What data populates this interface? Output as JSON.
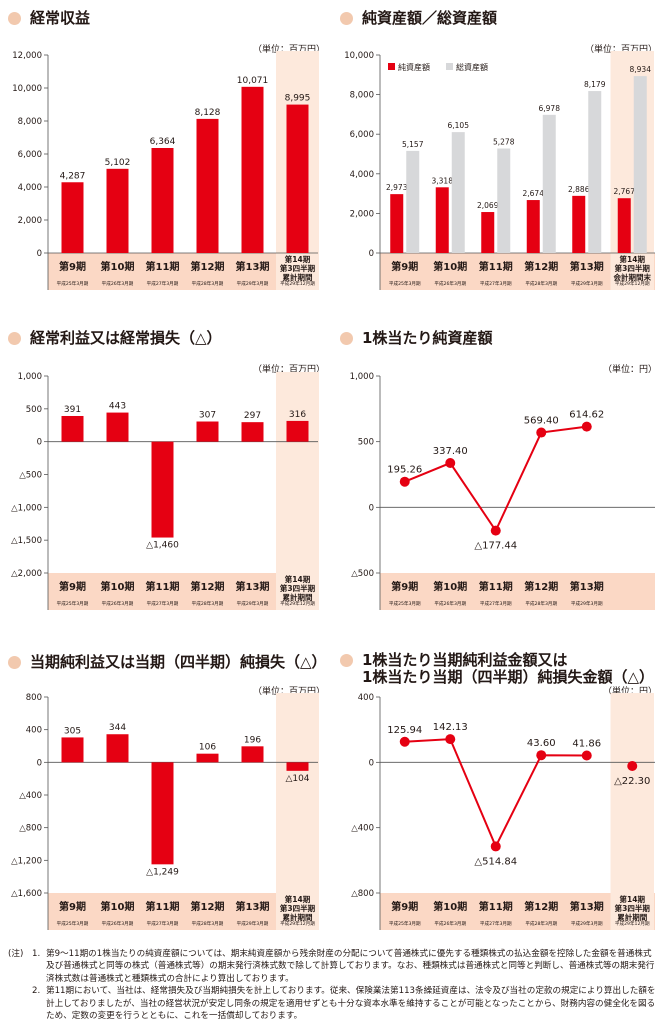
{
  "notes": {
    "label": "(注)",
    "items": [
      {
        "num": "1.",
        "text": "第9～11期の1株当たりの純資産額については、期末純資産額から残余財産の分配について普通株式に優先する種類株式の払込金額を控除した金額を普通株式及び普通株式と同等の株式（普通株式等）の期末発行済株式数で除して計算しております。なお、種類株式は普通株式と同等と判断し、普通株式等の期末発行済株式数は普通株式と種類株式の合計により算出しております。"
      },
      {
        "num": "2.",
        "text": "第11期において、当社は、経常損失及び当期純損失を計上しております。従来、保険業法第113条繰延資産は、法令及び当社の定款の規定により算出した額を計上しておりましたが、当社の経営状況が安定し同条の規定を適用せずとも十分な資本水準を維持することが可能となったことから、財務内容の健全化を図るため、定数の変更を行うとともに、これを一括償却しております。"
      }
    ]
  },
  "colors": {
    "red": "#e50012",
    "gray": "#d7d8da",
    "highlight": "#fde9dc",
    "catband": "#fbd8c5",
    "dot": "#f2c9ae"
  },
  "chart_data": [
    {
      "type": "bar",
      "title": "経常収益",
      "unit": "（単位：百万円）",
      "categories": [
        "第9期",
        "第10期",
        "第11期",
        "第12期",
        "第13期",
        "第14期\n第3四半期\n累計期間"
      ],
      "subcategories": [
        "平成25年3月期",
        "平成26年3月期",
        "平成27年3月期",
        "平成28年3月期",
        "平成29年3月期",
        "平成29年12月期"
      ],
      "series": [
        {
          "values": [
            4287,
            5102,
            6364,
            8128,
            10071,
            8995
          ],
          "labels": [
            "4,287",
            "5,102",
            "6,364",
            "8,128",
            "10,071",
            "8,995"
          ]
        }
      ],
      "ylim": [
        0,
        12000
      ],
      "yticks": [
        0,
        2000,
        4000,
        6000,
        8000,
        10000,
        12000
      ],
      "ytick_labels": [
        "0",
        "2,000",
        "4,000",
        "6,000",
        "8,000",
        "10,000",
        "12,000"
      ],
      "highlight_last": true
    },
    {
      "type": "bar",
      "title": "純資産額／総資産額",
      "unit": "（単位：百万円）",
      "categories": [
        "第9期",
        "第10期",
        "第11期",
        "第12期",
        "第13期",
        "第14期\n第3四半期\n会計期間末"
      ],
      "subcategories": [
        "平成25年3月期",
        "平成26年3月期",
        "平成27年3月期",
        "平成28年3月期",
        "平成29年3月期",
        "平成29年12月期"
      ],
      "series": [
        {
          "name": "純資産額",
          "values": [
            2973,
            3318,
            2069,
            2674,
            2886,
            2767
          ],
          "labels": [
            "2,973",
            "3,318",
            "2,069",
            "2,674",
            "2,886",
            "2,767"
          ]
        },
        {
          "name": "総資産額",
          "values": [
            5157,
            6105,
            5278,
            6978,
            8179,
            8934
          ],
          "labels": [
            "5,157",
            "6,105",
            "5,278",
            "6,978",
            "8,179",
            "8,934"
          ]
        }
      ],
      "ylim": [
        0,
        10000
      ],
      "yticks": [
        0,
        2000,
        4000,
        6000,
        8000,
        10000
      ],
      "ytick_labels": [
        "0",
        "2,000",
        "4,000",
        "6,000",
        "8,000",
        "10,000"
      ],
      "legend": "top-left",
      "highlight_last": true
    },
    {
      "type": "bar",
      "title": "経常利益又は経常損失（△）",
      "unit": "（単位：百万円）",
      "categories": [
        "第9期",
        "第10期",
        "第11期",
        "第12期",
        "第13期",
        "第14期\n第3四半期\n累計期間"
      ],
      "subcategories": [
        "平成25年3月期",
        "平成26年3月期",
        "平成27年3月期",
        "平成28年3月期",
        "平成29年3月期",
        "平成29年12月期"
      ],
      "series": [
        {
          "values": [
            391,
            443,
            -1460,
            307,
            297,
            316
          ],
          "labels": [
            "391",
            "443",
            "△1,460",
            "307",
            "297",
            "316"
          ]
        }
      ],
      "ylim": [
        -2000,
        1000
      ],
      "yticks": [
        1000,
        500,
        0,
        -500,
        -1000,
        -1500,
        -2000
      ],
      "ytick_labels": [
        "1,000",
        "500",
        "0",
        "△500",
        "△1,000",
        "△1,500",
        "△2,000"
      ],
      "highlight_last": true
    },
    {
      "type": "line",
      "title": "1株当たり純資産額",
      "unit": "（単位：円）",
      "categories": [
        "第9期",
        "第10期",
        "第11期",
        "第12期",
        "第13期"
      ],
      "subcategories": [
        "平成25年3月期",
        "平成26年3月期",
        "平成27年3月期",
        "平成28年3月期",
        "平成29年3月期"
      ],
      "series": [
        {
          "values": [
            195.26,
            337.4,
            -177.44,
            569.4,
            614.62
          ],
          "labels": [
            "195.26",
            "337.40",
            "△177.44",
            "569.40",
            "614.62"
          ]
        }
      ],
      "ylim": [
        -500,
        1000
      ],
      "yticks": [
        1000,
        500,
        0,
        -500
      ],
      "ytick_labels": [
        "1,000",
        "500",
        "0",
        "△500"
      ],
      "highlight_last": false
    },
    {
      "type": "bar",
      "title": "当期純利益又は当期（四半期）純損失（△）",
      "unit": "（単位：百万円）",
      "categories": [
        "第9期",
        "第10期",
        "第11期",
        "第12期",
        "第13期",
        "第14期\n第3四半期\n累計期間"
      ],
      "subcategories": [
        "平成25年3月期",
        "平成26年3月期",
        "平成27年3月期",
        "平成28年3月期",
        "平成29年3月期",
        "平成29年12月期"
      ],
      "series": [
        {
          "values": [
            305,
            344,
            -1249,
            106,
            196,
            -104
          ],
          "labels": [
            "305",
            "344",
            "△1,249",
            "106",
            "196",
            "△104"
          ]
        }
      ],
      "ylim": [
        -1600,
        800
      ],
      "yticks": [
        800,
        400,
        0,
        -400,
        -800,
        -1200,
        -1600
      ],
      "ytick_labels": [
        "800",
        "400",
        "0",
        "△400",
        "△800",
        "△1,200",
        "△1,600"
      ],
      "highlight_last": true
    },
    {
      "type": "line",
      "title": "1株当たり当期純利益金額又は\n1株当たり当期（四半期）純損失金額（△）",
      "unit": "（単位：円）",
      "categories": [
        "第9期",
        "第10期",
        "第11期",
        "第12期",
        "第13期",
        "第14期\n第3四半期\n累計期間"
      ],
      "subcategories": [
        "平成25年3月期",
        "平成26年3月期",
        "平成27年3月期",
        "平成28年3月期",
        "平成29年3月期",
        "平成29年12月期"
      ],
      "series": [
        {
          "values": [
            125.94,
            142.13,
            -514.84,
            43.6,
            41.86,
            -22.3
          ],
          "labels": [
            "125.94",
            "142.13",
            "△514.84",
            "43.60",
            "41.86",
            "△22.30"
          ]
        }
      ],
      "ylim": [
        -800,
        400
      ],
      "yticks": [
        400,
        0,
        -400,
        -800
      ],
      "ytick_labels": [
        "400",
        "0",
        "△400",
        "△800"
      ],
      "highlight_last": true,
      "last_point_unconnected": true
    }
  ]
}
